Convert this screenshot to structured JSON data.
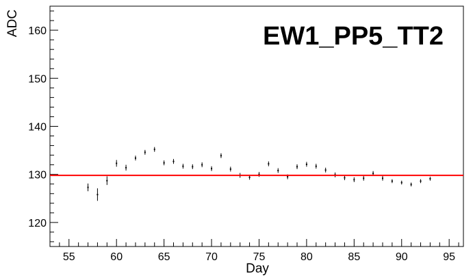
{
  "chart_data": {
    "type": "scatter",
    "title": "EW1_PP5_TT2",
    "xlabel": "Day",
    "ylabel": "ADC",
    "xlim": [
      53.0,
      96.5
    ],
    "ylim": [
      115.0,
      165.0
    ],
    "x_ticks": [
      55,
      60,
      65,
      70,
      75,
      80,
      85,
      90,
      95
    ],
    "y_ticks": [
      120,
      130,
      140,
      150,
      160
    ],
    "grid": false,
    "series": [
      {
        "marker": "error-bar",
        "color": "#000000",
        "points": [
          {
            "x": 57,
            "y": 127.3,
            "err": 0.8
          },
          {
            "x": 58,
            "y": 125.8,
            "err": 1.3
          },
          {
            "x": 59,
            "y": 128.7,
            "err": 0.9
          },
          {
            "x": 60,
            "y": 132.3,
            "err": 0.7
          },
          {
            "x": 61,
            "y": 131.4,
            "err": 0.6
          },
          {
            "x": 62,
            "y": 133.4,
            "err": 0.5
          },
          {
            "x": 63,
            "y": 134.6,
            "err": 0.5
          },
          {
            "x": 64,
            "y": 135.2,
            "err": 0.5
          },
          {
            "x": 65,
            "y": 132.4,
            "err": 0.5
          },
          {
            "x": 66,
            "y": 132.7,
            "err": 0.5
          },
          {
            "x": 67,
            "y": 131.7,
            "err": 0.5
          },
          {
            "x": 68,
            "y": 131.6,
            "err": 0.5
          },
          {
            "x": 69,
            "y": 132.0,
            "err": 0.5
          },
          {
            "x": 70,
            "y": 131.2,
            "err": 0.5
          },
          {
            "x": 71,
            "y": 133.9,
            "err": 0.5
          },
          {
            "x": 72,
            "y": 131.1,
            "err": 0.5
          },
          {
            "x": 73,
            "y": 129.8,
            "err": 0.5
          },
          {
            "x": 74,
            "y": 129.4,
            "err": 0.5
          },
          {
            "x": 75,
            "y": 130.0,
            "err": 0.5
          },
          {
            "x": 76,
            "y": 132.2,
            "err": 0.5
          },
          {
            "x": 77,
            "y": 130.8,
            "err": 0.5
          },
          {
            "x": 78,
            "y": 129.5,
            "err": 0.5
          },
          {
            "x": 79,
            "y": 131.6,
            "err": 0.5
          },
          {
            "x": 80,
            "y": 132.1,
            "err": 0.5
          },
          {
            "x": 81,
            "y": 131.7,
            "err": 0.5
          },
          {
            "x": 82,
            "y": 130.9,
            "err": 0.5
          },
          {
            "x": 83,
            "y": 129.9,
            "err": 0.5
          },
          {
            "x": 84,
            "y": 129.3,
            "err": 0.5
          },
          {
            "x": 85,
            "y": 128.9,
            "err": 0.5
          },
          {
            "x": 86,
            "y": 129.2,
            "err": 0.5
          },
          {
            "x": 87,
            "y": 130.2,
            "err": 0.5
          },
          {
            "x": 88,
            "y": 129.2,
            "err": 0.5
          },
          {
            "x": 89,
            "y": 128.6,
            "err": 0.4
          },
          {
            "x": 90,
            "y": 128.3,
            "err": 0.4
          },
          {
            "x": 91,
            "y": 127.9,
            "err": 0.4
          },
          {
            "x": 92,
            "y": 128.6,
            "err": 0.4
          },
          {
            "x": 93,
            "y": 129.1,
            "err": 0.4
          }
        ]
      }
    ],
    "reference_line": {
      "y": 129.8,
      "color": "#ff0000"
    }
  }
}
